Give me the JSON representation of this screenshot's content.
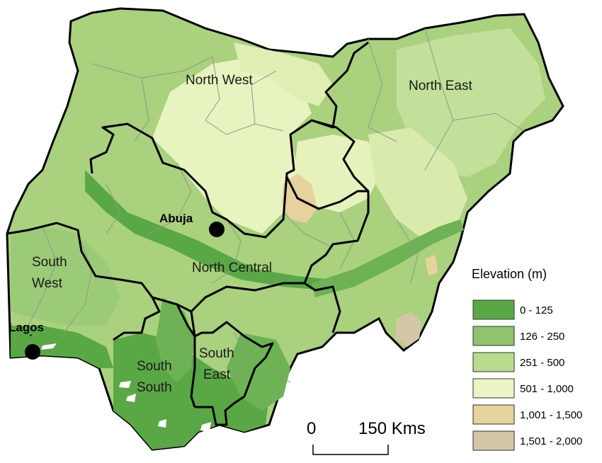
{
  "regions": [
    {
      "name": "North West"
    },
    {
      "name": "North East"
    },
    {
      "name": "North Central"
    },
    {
      "name": "South West",
      "line1": "South",
      "line2": "West"
    },
    {
      "name": "South South",
      "line1": "South",
      "line2": "South"
    },
    {
      "name": "South East",
      "line1": "South",
      "line2": "East"
    }
  ],
  "cities": [
    {
      "name": "Abuja"
    },
    {
      "name": "Lagos"
    }
  ],
  "legend": {
    "title": "Elevation (m)",
    "classes": [
      {
        "label": "0 - 125",
        "color": "#5aa845"
      },
      {
        "label": "126 - 250",
        "color": "#8dc46d"
      },
      {
        "label": "251 - 500",
        "color": "#b8dc8e"
      },
      {
        "label": "501 - 1,000",
        "color": "#eaf5c3"
      },
      {
        "label": "1,001 - 1,500",
        "color": "#e5d29c"
      },
      {
        "label": "1,501 - 2,000",
        "color": "#d4c6a6"
      }
    ]
  },
  "scale_bar": {
    "start_label": "0",
    "end_label": "150 Kms"
  }
}
